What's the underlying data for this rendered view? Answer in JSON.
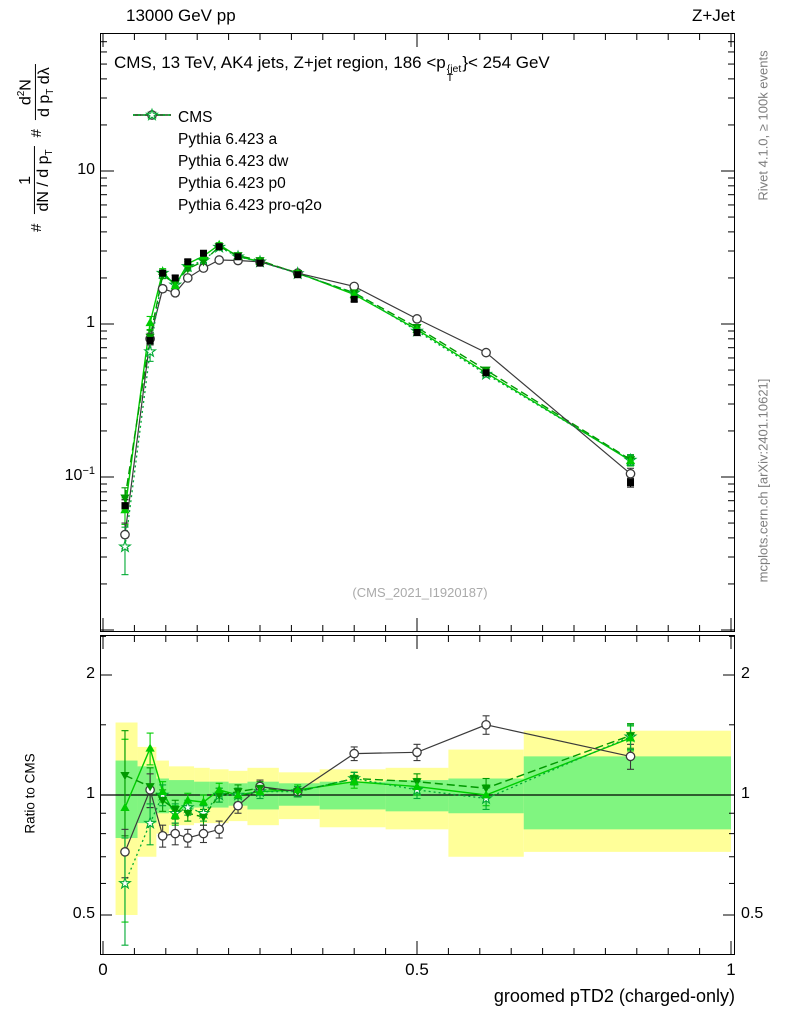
{
  "header": {
    "left": "13000 GeV pp",
    "right": "Z+Jet"
  },
  "title": {
    "prefix": "CMS, 13 TeV, AK4 jets, Z+jet region, 186 <p",
    "sup": "{jet",
    "sub": "T",
    "suffix": "}< 254 GeV"
  },
  "watermark": "(CMS_2021_I1920187)",
  "side_notes": {
    "top": "Rivet 4.1.0, ≥ 100k events",
    "bottom": "mcplots.cern.ch [arXiv:2401.10621]"
  },
  "ylabel": {
    "hash1": "#",
    "frac1_num": "1",
    "frac1_den_a": "dN / d p",
    "frac1_den_sub": "T",
    "hash2": "#",
    "frac2_num_a": "d",
    "frac2_num_sup": "2",
    "frac2_num_b": "N",
    "frac2_den_a": "d p",
    "frac2_den_sub": "T",
    "frac2_den_b": " dλ"
  },
  "ratio_ylabel": "Ratio to CMS",
  "xlabel": "groomed pTD2 (charged-only)",
  "axes": {
    "x": {
      "min": 0,
      "max": 1,
      "tick_labels": [
        "0",
        "0.5",
        "1"
      ],
      "tick_values": [
        0,
        0.5,
        1
      ],
      "minor_step": 0.05
    },
    "y_main": {
      "scale": "log10",
      "min": 0.01,
      "max": 80,
      "tick_top": "10",
      "tick_mid": "1",
      "tick_bot_base": "10",
      "tick_bot_exp": "−1",
      "tick_values": [
        10,
        1,
        0.1
      ]
    },
    "y_ratio": {
      "scale": "log2",
      "min": 0.4,
      "max": 2.5,
      "tick_labels": [
        "2",
        "1",
        "0.5"
      ],
      "tick_values": [
        2,
        1,
        0.5
      ],
      "minor_ticks": [
        0.6,
        0.7,
        0.8,
        0.9,
        1.5,
        2.5
      ]
    }
  },
  "colors": {
    "band_yellow": "#ffff99",
    "band_green": "#80f580",
    "frame": "#000000",
    "ref_line": "#000000",
    "watermark": "#aaaaaa",
    "side_note": "#7d7d7d"
  },
  "chart_data": {
    "type": "line",
    "title": "CMS, 13 TeV, AK4 jets, Z+jet region, 186 <p_T^jet< 254 GeV",
    "xlabel": "groomed pTD2 (charged-only)",
    "xlim": [
      0,
      1
    ],
    "x": [
      0.035,
      0.075,
      0.095,
      0.115,
      0.135,
      0.16,
      0.185,
      0.215,
      0.25,
      0.31,
      0.4,
      0.5,
      0.61,
      0.84
    ],
    "main": {
      "yscale": "log",
      "ylim": [
        0.01,
        80
      ],
      "series": [
        {
          "name": "CMS",
          "color": "#000000",
          "marker": "square-filled",
          "line": "none",
          "lw": 0,
          "values": [
            0.065,
            0.78,
            2.15,
            2.0,
            2.55,
            2.9,
            3.2,
            2.75,
            2.5,
            2.1,
            1.45,
            0.88,
            0.48,
            0.092
          ],
          "err": [
            0.006,
            0.04,
            0.08,
            0.08,
            0.09,
            0.1,
            0.1,
            0.09,
            0.08,
            0.07,
            0.05,
            0.04,
            0.025,
            0.006
          ]
        },
        {
          "name": "Pythia 6.423 a",
          "color": "#00cc00",
          "marker": "triangle-up-filled",
          "line": "solid",
          "lw": 1.4,
          "values": [
            0.061,
            1.02,
            2.2,
            1.78,
            2.48,
            2.78,
            3.3,
            2.76,
            2.56,
            2.16,
            1.56,
            0.92,
            0.48,
            0.128
          ],
          "err": [
            0.012,
            0.1,
            0.1,
            0.08,
            0.08,
            0.08,
            0.1,
            0.08,
            0.08,
            0.05,
            0.04,
            0.03,
            0.02,
            0.01
          ]
        },
        {
          "name": "Pythia 6.423 dw",
          "color": "#009900",
          "marker": "triangle-down-filled",
          "line": "dashed",
          "lw": 1.4,
          "values": [
            0.073,
            0.82,
            2.08,
            1.84,
            2.3,
            2.56,
            3.2,
            2.8,
            2.6,
            2.14,
            1.6,
            0.95,
            0.5,
            0.13
          ],
          "err": [
            0.012,
            0.09,
            0.1,
            0.08,
            0.08,
            0.08,
            0.1,
            0.08,
            0.08,
            0.05,
            0.04,
            0.03,
            0.02,
            0.01
          ]
        },
        {
          "name": "Pythia 6.423 p0",
          "color": "#3a3a3a",
          "marker": "circle-open",
          "line": "solid",
          "lw": 1.2,
          "values": [
            0.042,
            0.8,
            1.7,
            1.6,
            2.0,
            2.32,
            2.62,
            2.6,
            2.55,
            2.15,
            1.76,
            1.08,
            0.65,
            0.105
          ],
          "err": [
            0.008,
            0.07,
            0.08,
            0.07,
            0.07,
            0.07,
            0.08,
            0.07,
            0.07,
            0.05,
            0.04,
            0.03,
            0.02,
            0.009
          ]
        },
        {
          "name": "Pythia 6.423 pro-q2o",
          "color": "#00aa33",
          "marker": "star-open",
          "line": "dotted",
          "lw": 1.3,
          "values": [
            0.035,
            0.66,
            2.15,
            1.8,
            2.38,
            2.6,
            3.18,
            2.75,
            2.55,
            2.14,
            1.6,
            0.9,
            0.47,
            0.129
          ],
          "err": [
            0.012,
            0.09,
            0.1,
            0.08,
            0.08,
            0.08,
            0.1,
            0.08,
            0.08,
            0.05,
            0.04,
            0.03,
            0.02,
            0.01
          ]
        }
      ]
    },
    "ratio": {
      "yscale": "log2",
      "ylim": [
        0.4,
        2.5
      ],
      "ref_line": 1,
      "series": [
        {
          "name": "Pythia 6.423 a",
          "color": "#00cc00",
          "marker": "triangle-up-filled",
          "line": "solid",
          "lw": 1.4,
          "values": [
            0.93,
            1.31,
            1.02,
            0.89,
            0.97,
            0.96,
            1.03,
            1.0,
            1.02,
            1.03,
            1.08,
            1.05,
            1.0,
            1.39
          ],
          "err": [
            0.45,
            0.12,
            0.06,
            0.05,
            0.04,
            0.04,
            0.04,
            0.04,
            0.04,
            0.03,
            0.04,
            0.05,
            0.06,
            0.1
          ]
        },
        {
          "name": "Pythia 6.423 dw",
          "color": "#009900",
          "marker": "triangle-down-filled",
          "line": "dashed",
          "lw": 1.4,
          "values": [
            1.12,
            1.05,
            0.97,
            0.92,
            0.9,
            0.88,
            1.0,
            1.02,
            1.04,
            1.02,
            1.1,
            1.08,
            1.04,
            1.41
          ],
          "err": [
            0.33,
            0.12,
            0.06,
            0.05,
            0.04,
            0.04,
            0.04,
            0.04,
            0.04,
            0.03,
            0.04,
            0.05,
            0.06,
            0.1
          ]
        },
        {
          "name": "Pythia 6.423 p0",
          "color": "#3a3a3a",
          "marker": "circle-open",
          "line": "solid",
          "lw": 1.2,
          "values": [
            0.72,
            1.03,
            0.79,
            0.8,
            0.78,
            0.8,
            0.82,
            0.94,
            1.05,
            1.02,
            1.27,
            1.28,
            1.5,
            1.25
          ],
          "err": [
            0.1,
            0.1,
            0.05,
            0.05,
            0.04,
            0.04,
            0.04,
            0.04,
            0.04,
            0.03,
            0.05,
            0.06,
            0.08,
            0.09
          ]
        },
        {
          "name": "Pythia 6.423 pro-q2o",
          "color": "#00aa33",
          "marker": "star-open",
          "line": "dotted",
          "lw": 1.3,
          "values": [
            0.6,
            0.85,
            1.0,
            0.9,
            0.93,
            0.9,
            1.0,
            1.0,
            1.02,
            1.02,
            1.1,
            1.03,
            0.98,
            1.4
          ],
          "err": [
            0.18,
            0.1,
            0.06,
            0.05,
            0.04,
            0.04,
            0.04,
            0.04,
            0.04,
            0.03,
            0.04,
            0.05,
            0.06,
            0.1
          ]
        }
      ],
      "bands": [
        {
          "x0": 0.02,
          "x1": 0.055,
          "yellow": [
            0.5,
            1.52
          ],
          "green": [
            0.78,
            1.22
          ]
        },
        {
          "x0": 0.055,
          "x1": 0.085,
          "yellow": [
            0.7,
            1.32
          ],
          "green": [
            0.85,
            1.18
          ]
        },
        {
          "x0": 0.085,
          "x1": 0.105,
          "yellow": [
            0.8,
            1.22
          ],
          "green": [
            0.9,
            1.1
          ]
        },
        {
          "x0": 0.105,
          "x1": 0.125,
          "yellow": [
            0.84,
            1.18
          ],
          "green": [
            0.92,
            1.09
          ]
        },
        {
          "x0": 0.125,
          "x1": 0.145,
          "yellow": [
            0.84,
            1.18
          ],
          "green": [
            0.92,
            1.09
          ]
        },
        {
          "x0": 0.145,
          "x1": 0.17,
          "yellow": [
            0.85,
            1.17
          ],
          "green": [
            0.93,
            1.08
          ]
        },
        {
          "x0": 0.17,
          "x1": 0.2,
          "yellow": [
            0.85,
            1.16
          ],
          "green": [
            0.93,
            1.08
          ]
        },
        {
          "x0": 0.2,
          "x1": 0.23,
          "yellow": [
            0.86,
            1.15
          ],
          "green": [
            0.94,
            1.07
          ]
        },
        {
          "x0": 0.23,
          "x1": 0.28,
          "yellow": [
            0.84,
            1.17
          ],
          "green": [
            0.92,
            1.08
          ]
        },
        {
          "x0": 0.28,
          "x1": 0.345,
          "yellow": [
            0.87,
            1.14
          ],
          "green": [
            0.94,
            1.07
          ]
        },
        {
          "x0": 0.345,
          "x1": 0.45,
          "yellow": [
            0.83,
            1.16
          ],
          "green": [
            0.92,
            1.08
          ]
        },
        {
          "x0": 0.45,
          "x1": 0.55,
          "yellow": [
            0.82,
            1.17
          ],
          "green": [
            0.91,
            1.09
          ]
        },
        {
          "x0": 0.55,
          "x1": 0.67,
          "yellow": [
            0.7,
            1.3
          ],
          "green": [
            0.9,
            1.1
          ]
        },
        {
          "x0": 0.67,
          "x1": 1.0,
          "yellow": [
            0.72,
            1.45
          ],
          "green": [
            0.82,
            1.25
          ]
        }
      ]
    }
  }
}
